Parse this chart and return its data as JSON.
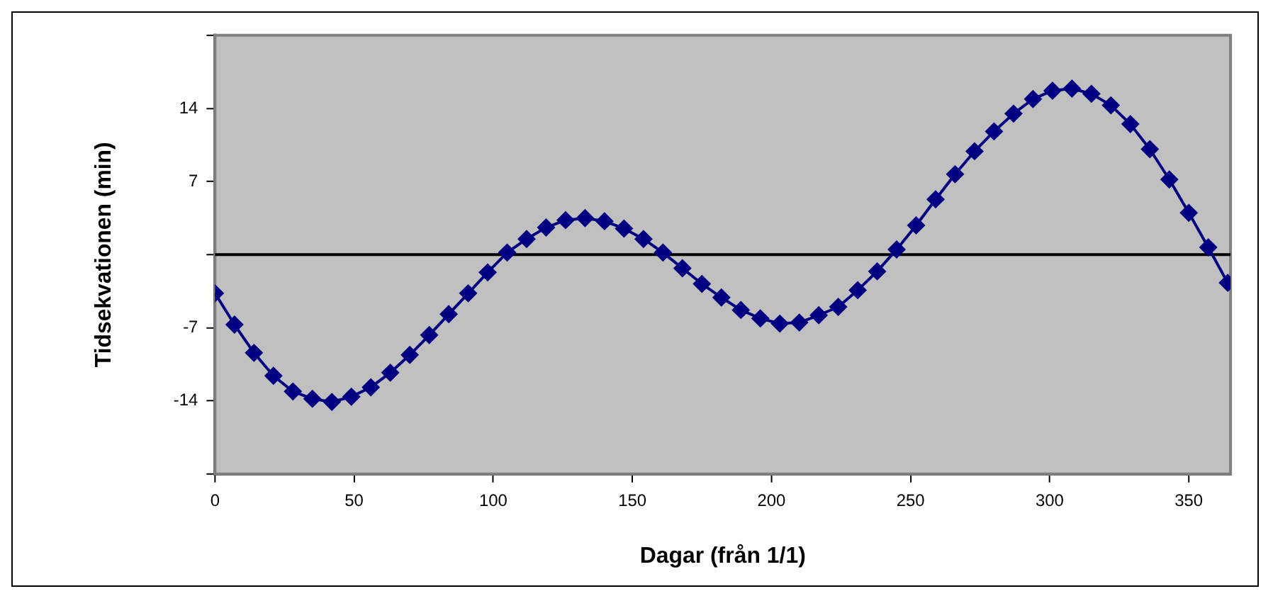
{
  "chart_data": {
    "type": "line",
    "xlabel": "Dagar (från 1/1)",
    "ylabel": "Tidsekvationen (min)",
    "x": [
      0,
      7,
      14,
      21,
      28,
      35,
      42,
      49,
      56,
      63,
      70,
      77,
      84,
      91,
      98,
      105,
      112,
      119,
      126,
      133,
      140,
      147,
      154,
      161,
      168,
      175,
      182,
      189,
      196,
      203,
      210,
      217,
      224,
      231,
      238,
      245,
      252,
      259,
      266,
      273,
      280,
      287,
      294,
      301,
      308,
      315,
      322,
      329,
      336,
      343,
      350,
      357,
      364
    ],
    "series": [
      {
        "color": "#000080",
        "values": [
          -3.7,
          -6.7,
          -9.4,
          -11.6,
          -13.1,
          -13.8,
          -14.1,
          -13.6,
          -12.7,
          -11.3,
          -9.6,
          -7.7,
          -5.7,
          -3.7,
          -1.7,
          0.2,
          1.5,
          2.6,
          3.3,
          3.5,
          3.2,
          2.5,
          1.5,
          0.2,
          -1.3,
          -2.8,
          -4.1,
          -5.3,
          -6.1,
          -6.6,
          -6.5,
          -5.8,
          -5.0,
          -3.4,
          -1.6,
          0.5,
          2.8,
          5.3,
          7.7,
          9.9,
          11.8,
          13.5,
          14.9,
          15.7,
          15.9,
          15.4,
          14.3,
          12.5,
          10.1,
          7.2,
          4.0,
          0.7,
          -2.7
        ]
      }
    ],
    "xlim": [
      0,
      365
    ],
    "xticks": [
      0,
      50,
      100,
      150,
      200,
      250,
      300,
      350
    ],
    "ylim": [
      -21,
      21
    ],
    "yticks": [
      {
        "value": -21,
        "label": null
      },
      -14,
      -7,
      {
        "value": 0,
        "label": null
      },
      7,
      14,
      {
        "value": 21,
        "label": null
      }
    ],
    "ref_lines": [
      {
        "axis": "y",
        "value": 0,
        "color": "#000000"
      }
    ],
    "legend": false,
    "marker": "diamond",
    "line_style": "solid"
  }
}
